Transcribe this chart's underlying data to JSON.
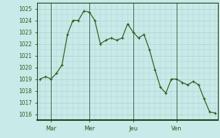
{
  "y_values": [
    1019.0,
    1019.2,
    1019.0,
    1019.5,
    1020.2,
    1022.8,
    1024.0,
    1024.0,
    1024.8,
    1024.7,
    1024.0,
    1022.0,
    1022.3,
    1022.5,
    1022.3,
    1022.5,
    1023.7,
    1023.0,
    1022.5,
    1022.8,
    1021.5,
    1019.8,
    1018.3,
    1017.8,
    1019.0,
    1019.0,
    1018.7,
    1018.5,
    1018.8,
    1018.5,
    1017.3,
    1016.2,
    1016.1
  ],
  "n_points": 33,
  "x_ticks_pos": [
    2,
    9,
    17,
    25
  ],
  "x_tick_labels": [
    "Mar",
    "Mer",
    "Jeu",
    "Ven"
  ],
  "y_min": 1016,
  "y_max": 1025,
  "line_color": "#2d5a1b",
  "marker_color": "#2d5a1b",
  "bg_color": "#c8eae8",
  "grid_color": "#aacfcc",
  "axis_color": "#1a3a12",
  "tick_label_color": "#2d5a1b",
  "vline_color": "#3a6040",
  "tick_fontsize": 5.5,
  "xtick_fontsize": 6.0
}
